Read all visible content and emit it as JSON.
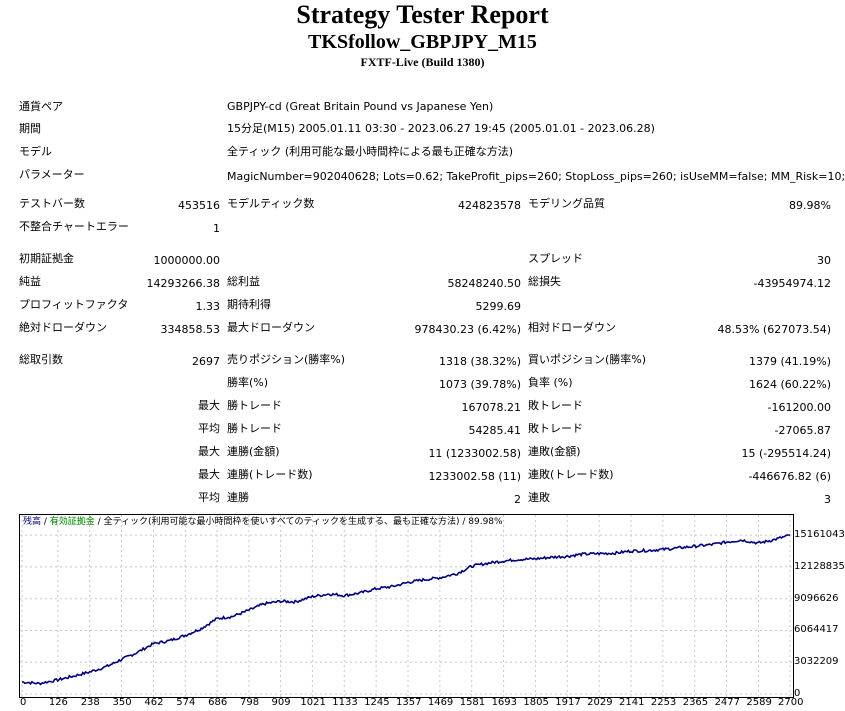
{
  "header": {
    "title": "Strategy Tester Report",
    "ea_name": "TKSfollow_GBPJPY_M15",
    "server": "FXTF-Live (Build 1380)"
  },
  "info": {
    "symbol_label": "通貨ペア",
    "symbol_value": "GBPJPY-cd (Great Britain Pound vs Japanese Yen)",
    "period_label": "期間",
    "period_value": "15分足(M15) 2005.01.11 03:30 - 2023.06.27 19:45 (2005.01.01 - 2023.06.28)",
    "model_label": "モデル",
    "model_value": "全ティック (利用可能な最小時間枠による最も正確な方法)",
    "params_label": "パラメーター",
    "params_value": "MagicNumber=902040628; Lots=0.62; TakeProfit_pips=260; StopLoss_pips=260; isUseMM=false; MM_Risk=10;"
  },
  "stats": {
    "bars_label": "テストバー数",
    "bars_value": "453516",
    "ticks_label": "モデルティック数",
    "ticks_value": "424823578",
    "quality_label": "モデリング品質",
    "quality_value": "89.98%",
    "mismatch_label": "不整合チャートエラー",
    "mismatch_value": "1",
    "deposit_label": "初期証拠金",
    "deposit_value": "1000000.00",
    "spread_label": "スプレッド",
    "spread_value": "30",
    "net_label": "純益",
    "net_value": "14293266.38",
    "gross_profit_label": "総利益",
    "gross_profit_value": "58248240.50",
    "gross_loss_label": "総損失",
    "gross_loss_value": "-43954974.12",
    "pf_label": "プロフィットファクタ",
    "pf_value": "1.33",
    "payoff_label": "期待利得",
    "payoff_value": "5299.69",
    "abs_dd_label": "絶対ドローダウン",
    "abs_dd_value": "334858.53",
    "max_dd_label": "最大ドローダウン",
    "max_dd_value": "978430.23 (6.42%)",
    "rel_dd_label": "相対ドローダウン",
    "rel_dd_value": "48.53% (627073.54)",
    "trades_label": "総取引数",
    "trades_value": "2697",
    "short_label": "売りポジション(勝率%)",
    "short_value": "1318 (38.32%)",
    "long_label": "買いポジション(勝率%)",
    "long_value": "1379 (41.19%)",
    "winrate_label": "勝率(%)",
    "winrate_value": "1073 (39.78%)",
    "lossrate_label": "負率 (%)",
    "lossrate_value": "1624 (60.22%)",
    "max_prefix": "最大",
    "avg_prefix": "平均",
    "max_win_label": "勝トレード",
    "max_win_value": "167078.21",
    "max_loss_label": "敗トレード",
    "max_loss_value": "-161200.00",
    "avg_win_label": "勝トレード",
    "avg_win_value": "54285.41",
    "avg_loss_label": "敗トレード",
    "avg_loss_value": "-27065.87",
    "max_consec_win_label": "連勝(金額)",
    "max_consec_win_value": "11 (1233002.58)",
    "max_consec_loss_label": "連敗(金額)",
    "max_consec_loss_value": "15 (-295514.24)",
    "max_consec_win_trades_label": "連勝(トレード数)",
    "max_consec_win_trades_value": "1233002.58 (11)",
    "max_consec_loss_trades_label": "連敗(トレード数)",
    "max_consec_loss_trades_value": "-446676.82 (6)",
    "avg_consec_win_label": "連勝",
    "avg_consec_win_value": "2",
    "avg_consec_loss_label": "連敗",
    "avg_consec_loss_value": "3"
  },
  "chart_data": {
    "type": "line",
    "legend": {
      "balance": "残高",
      "sep1": " / ",
      "equity": "有効証拠金",
      "sep2": " / ",
      "rest": "全ティック(利用可能な最小時間枠を使いすべてのティックを生成する、最も正確な方法) / 89.98%"
    },
    "x_ticks": [
      "0",
      "126",
      "238",
      "350",
      "462",
      "574",
      "686",
      "798",
      "909",
      "1021",
      "1133",
      "1245",
      "1357",
      "1469",
      "1581",
      "1693",
      "1805",
      "1917",
      "2029",
      "2141",
      "2253",
      "2365",
      "2477",
      "2589",
      "2700"
    ],
    "y_ticks": [
      "15161043",
      "12128835",
      "9096626",
      "6064417",
      "3032209",
      "0"
    ],
    "xlim": [
      0,
      2700
    ],
    "ylim": [
      0,
      16800000
    ],
    "series": [
      {
        "color": "#000080",
        "x": [
          0,
          60,
          126,
          180,
          238,
          300,
          350,
          400,
          462,
          520,
          574,
          630,
          686,
          740,
          798,
          850,
          909,
          960,
          1021,
          1080,
          1133,
          1190,
          1245,
          1300,
          1357,
          1410,
          1469,
          1530,
          1581,
          1640,
          1693,
          1750,
          1805,
          1860,
          1917,
          1970,
          2029,
          2085,
          2141,
          2200,
          2253,
          2310,
          2365,
          2420,
          2477,
          2530,
          2589,
          2640,
          2700
        ],
        "y": [
          1150000,
          1000000,
          1350000,
          1700000,
          2100000,
          2650000,
          3300000,
          3900000,
          4800000,
          5100000,
          5600000,
          6250000,
          7200000,
          7400000,
          8000000,
          8600000,
          8850000,
          8800000,
          9300000,
          9550000,
          9400000,
          9650000,
          10050000,
          10250000,
          10650000,
          10900000,
          11100000,
          11500000,
          12200000,
          12500000,
          12700000,
          12850000,
          12900000,
          13050000,
          13150000,
          13350000,
          13400000,
          13450000,
          13650000,
          13700000,
          13800000,
          13950000,
          14100000,
          14250000,
          14500000,
          14700000,
          14400000,
          14700000,
          15161043
        ]
      }
    ]
  }
}
